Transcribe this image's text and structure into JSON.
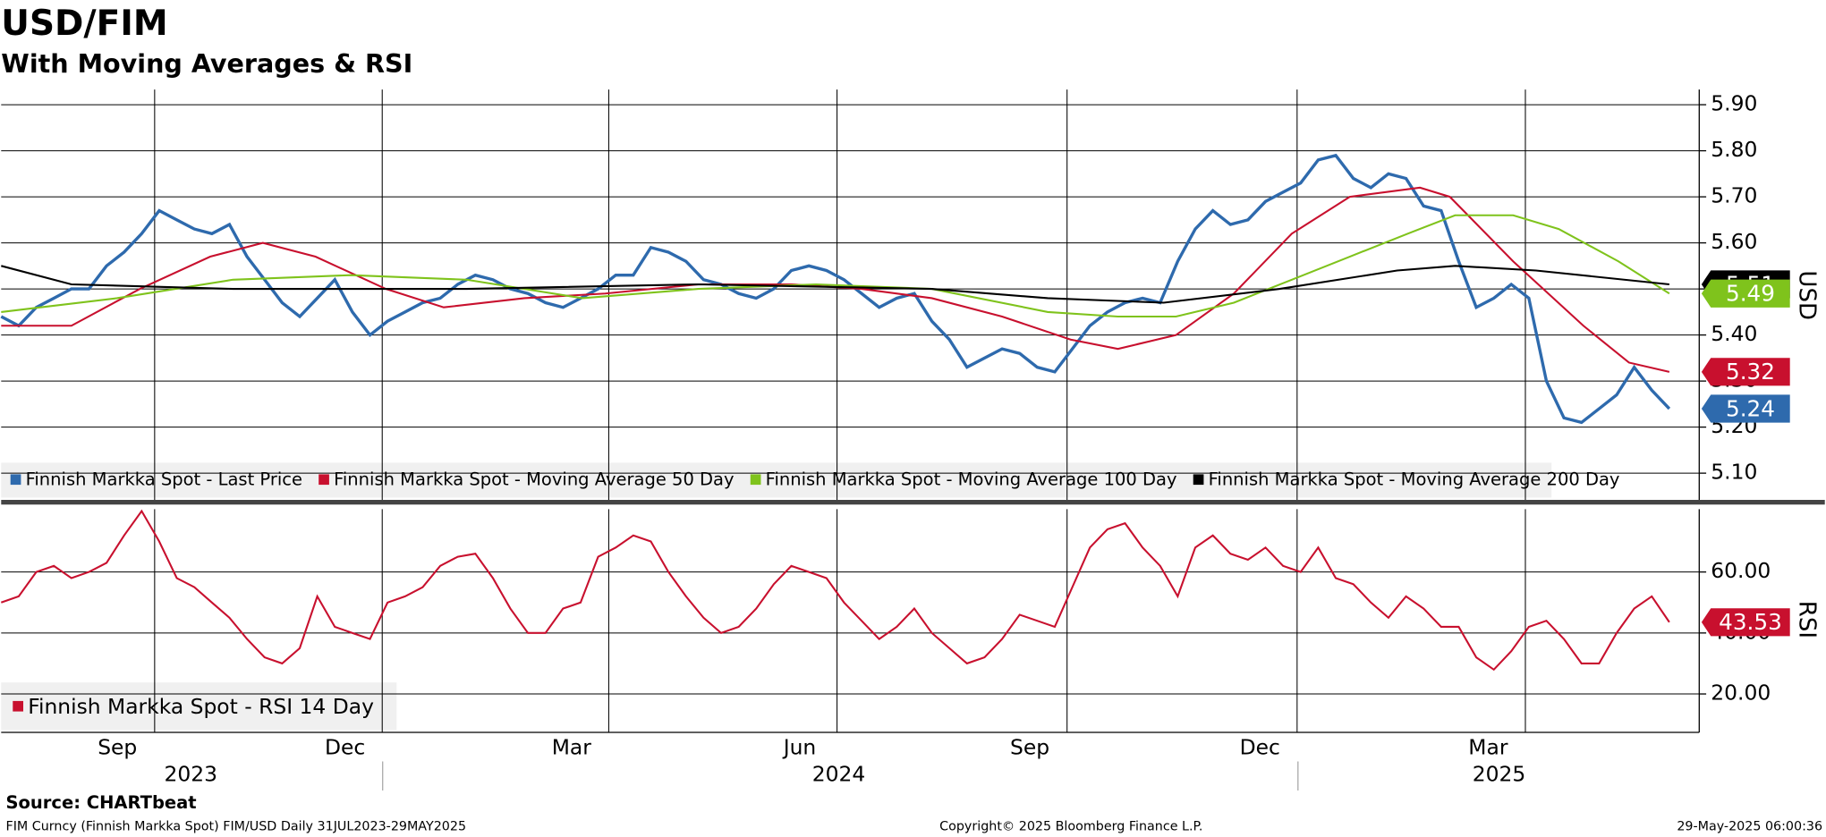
{
  "chart_data": [
    {
      "type": "line",
      "title": "USD/FIM",
      "subtitle": "With Moving Averages & RSI",
      "y_label": "USD",
      "xlim": [
        0,
        96.7
      ],
      "ylim": [
        5.042,
        5.933
      ],
      "xticks": [
        {
          "value": 8.74,
          "label": "Sep"
        },
        {
          "value": 21.7,
          "label": "Dec"
        },
        {
          "value": 34.6,
          "label": "Mar"
        },
        {
          "value": 47.6,
          "label": "Jun"
        },
        {
          "value": 60.7,
          "label": "Sep"
        },
        {
          "value": 73.8,
          "label": "Dec"
        },
        {
          "value": 86.8,
          "label": "Mar"
        }
      ],
      "year_ticks": [
        {
          "value": 10.8,
          "label": "2023"
        },
        {
          "value": 47.7,
          "label": "2024"
        },
        {
          "value": 85.3,
          "label": "2025"
        }
      ],
      "yticks": [
        {
          "value": 5.1,
          "label": "5.10"
        },
        {
          "value": 5.2,
          "label": "5.20"
        },
        {
          "value": 5.3,
          "label": "5.30"
        },
        {
          "value": 5.4,
          "label": "5.40"
        },
        {
          "value": 5.5,
          "label": "5.50"
        },
        {
          "value": 5.6,
          "label": "5.60"
        },
        {
          "value": 5.7,
          "label": "5.70"
        },
        {
          "value": 5.8,
          "label": "5.80"
        },
        {
          "value": 5.9,
          "label": "5.90"
        }
      ],
      "grid": true,
      "series": [
        {
          "name": "Finnish Markka Spot - Last Price",
          "color": "#2e6aad",
          "values": [
            5.44,
            5.42,
            5.46,
            5.48,
            5.5,
            5.5,
            5.55,
            5.58,
            5.62,
            5.67,
            5.65,
            5.63,
            5.62,
            5.64,
            5.57,
            5.52,
            5.47,
            5.44,
            5.48,
            5.52,
            5.45,
            5.4,
            5.43,
            5.45,
            5.47,
            5.48,
            5.51,
            5.53,
            5.52,
            5.5,
            5.49,
            5.47,
            5.46,
            5.48,
            5.5,
            5.53,
            5.53,
            5.59,
            5.58,
            5.56,
            5.52,
            5.51,
            5.49,
            5.48,
            5.5,
            5.54,
            5.55,
            5.54,
            5.52,
            5.49,
            5.46,
            5.48,
            5.49,
            5.43,
            5.39,
            5.33,
            5.35,
            5.37,
            5.36,
            5.33,
            5.32,
            5.37,
            5.42,
            5.45,
            5.47,
            5.48,
            5.47,
            5.56,
            5.63,
            5.67,
            5.64,
            5.65,
            5.69,
            5.71,
            5.73,
            5.78,
            5.79,
            5.74,
            5.72,
            5.75,
            5.74,
            5.68,
            5.67,
            5.56,
            5.46,
            5.48,
            5.51,
            5.48,
            5.3,
            5.22,
            5.21,
            5.24,
            5.27,
            5.33,
            5.28,
            5.24
          ]
        },
        {
          "name": "Finnish Markka Spot - Moving Average 50 Day",
          "color": "#c8102e",
          "x": [
            0,
            4.0,
            7.9,
            11.9,
            14.9,
            17.9,
            21.9,
            25.2,
            29.8,
            34.4,
            39.7,
            45.0,
            49.0,
            53.0,
            57.0,
            60.9,
            63.6,
            66.9,
            70.2,
            73.5,
            76.8,
            80.8,
            82.5,
            86.1,
            90.1,
            92.7,
            95
          ],
          "values": [
            5.42,
            5.42,
            5.5,
            5.57,
            5.6,
            5.57,
            5.5,
            5.46,
            5.48,
            5.49,
            5.51,
            5.51,
            5.5,
            5.48,
            5.44,
            5.39,
            5.37,
            5.4,
            5.49,
            5.62,
            5.7,
            5.72,
            5.7,
            5.56,
            5.42,
            5.34,
            5.32
          ]
        },
        {
          "name": "Finnish Markka Spot - Moving Average 100 Day",
          "color": "#7fc31c",
          "x": [
            0,
            6.6,
            13.2,
            19.9,
            26.5,
            33.1,
            39.7,
            46.4,
            53.0,
            59.6,
            63.6,
            66.9,
            70.2,
            73.5,
            76.8,
            80.1,
            82.8,
            86.1,
            88.7,
            92.1,
            95
          ],
          "values": [
            5.45,
            5.48,
            5.52,
            5.53,
            5.52,
            5.48,
            5.5,
            5.51,
            5.5,
            5.45,
            5.44,
            5.44,
            5.47,
            5.52,
            5.57,
            5.62,
            5.66,
            5.66,
            5.63,
            5.56,
            5.49
          ]
        },
        {
          "name": "Finnish Markka Spot - Moving Average 200 Day",
          "color": "#000000",
          "x": [
            0,
            4.0,
            13.2,
            26.5,
            39.7,
            53.0,
            59.6,
            66.2,
            72.8,
            79.5,
            82.8,
            87.4,
            95
          ],
          "values": [
            5.55,
            5.51,
            5.5,
            5.5,
            5.51,
            5.5,
            5.48,
            5.47,
            5.5,
            5.54,
            5.55,
            5.54,
            5.51
          ]
        }
      ]
    },
    {
      "type": "line",
      "y_label": "RSI",
      "xlim": [
        0,
        96.7
      ],
      "ylim": [
        7.4,
        80.6
      ],
      "yticks": [
        {
          "value": 20,
          "label": "20.00"
        },
        {
          "value": 40,
          "label": "40.00"
        },
        {
          "value": 60,
          "label": "60.00"
        }
      ],
      "grid": true,
      "series": [
        {
          "name": "Finnish Markka Spot - RSI 14 Day",
          "color": "#c8102e",
          "values": [
            50,
            52,
            60,
            62,
            58,
            60,
            63,
            72,
            80,
            70,
            58,
            55,
            50,
            45,
            38,
            32,
            30,
            35,
            52,
            42,
            40,
            38,
            50,
            52,
            55,
            62,
            65,
            66,
            58,
            48,
            40,
            40,
            48,
            50,
            65,
            68,
            72,
            70,
            60,
            52,
            45,
            40,
            42,
            48,
            56,
            62,
            60,
            58,
            50,
            44,
            38,
            42,
            48,
            40,
            35,
            30,
            32,
            38,
            46,
            44,
            42,
            55,
            68,
            74,
            76,
            68,
            62,
            52,
            68,
            72,
            66,
            64,
            68,
            62,
            60,
            68,
            58,
            56,
            50,
            45,
            52,
            48,
            42,
            42,
            32,
            28,
            34,
            42,
            44,
            38,
            30,
            30,
            40,
            48,
            52,
            43.53
          ]
        }
      ]
    },
    {
      "type": "footer",
      "source": "Source: CHARTbeat",
      "description": "FIM Curncy (Finnish Markka Spot) FIM/USD  Daily 31JUL2023-29MAY2025",
      "copyright": "Copyright© 2025 Bloomberg Finance L.P.",
      "timestamp": "29-May-2025 06:00:36"
    }
  ]
}
